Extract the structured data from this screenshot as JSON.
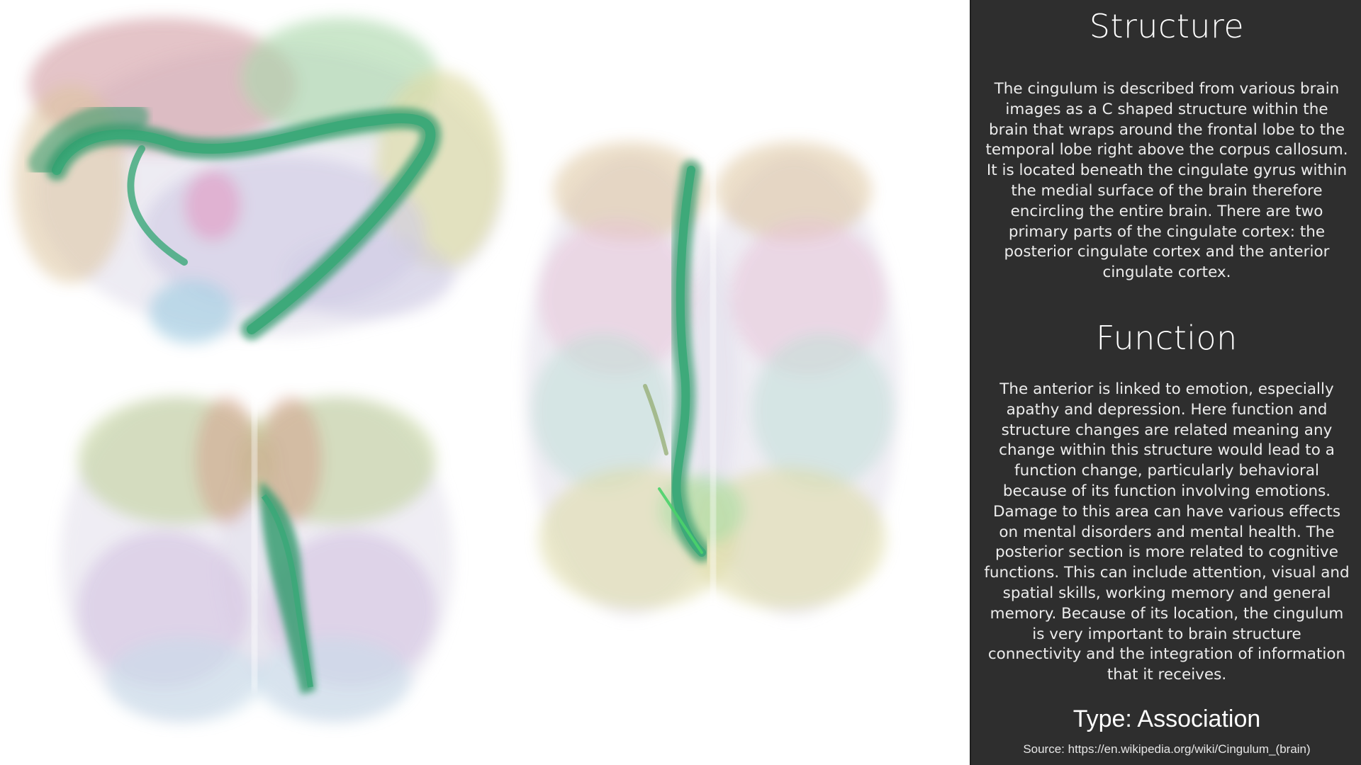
{
  "structure": {
    "title": "Structure",
    "text": "The cingulum is described from various brain images as a C shaped structure within the brain that wraps around the frontal lobe to the temporal lobe right above the corpus callosum. It is located beneath the cingulate gyrus within the medial surface of the brain therefore encircling the entire brain. There are two primary parts of the cingulate cortex: the posterior cingulate cortex and the anterior cingulate cortex."
  },
  "function": {
    "title": "Function",
    "text": "The anterior is linked to emotion, especially apathy and depression. Here function and structure changes are related meaning any change within this structure would lead to a function change, particularly behavioral because of its function involving emotions. Damage to this area can have various effects on mental disorders and mental health. The posterior section is more related to cognitive functions. This can include attention, visual and spatial skills, working memory and general memory. Because of its location, the cingulum is very important to brain structure connectivity and the integration of information that it receives."
  },
  "type_label": "Type: Association",
  "source_label": "Source: https://en.wikipedia.org/wiki/Cingulum_(brain)",
  "colors": {
    "panel_bg": "#2e2e2e",
    "tract_green": "#2f9a6a",
    "frontal_red": "#c98a92",
    "parietal_green": "#9fd3a0",
    "occipital_yellow": "#d8d69a",
    "temporal_lavender": "#c9c3e0",
    "cerebellum_blue": "#b9d4e6",
    "orbital_tan": "#d7b98c"
  }
}
